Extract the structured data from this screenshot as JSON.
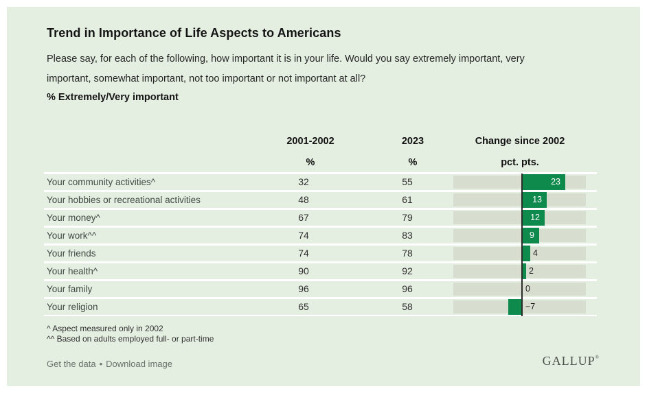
{
  "header": {
    "title": "Trend in Importance of Life Aspects to Americans",
    "question_lines": [
      "Please say, for each of the following, how important it is in your life. Would you say extremely important, very",
      "important, somewhat important, not too important or not important at all?"
    ],
    "measure": "% Extremely/Very important"
  },
  "table": {
    "columns": {
      "col1": {
        "label": "2001-2002",
        "unit": "%"
      },
      "col2": {
        "label": "2023",
        "unit": "%"
      },
      "col3": {
        "label": "Change since 2002",
        "unit": "pct. pts."
      }
    },
    "rows": [
      {
        "label": "Your community activities^",
        "v2002": "32",
        "v2023": "55",
        "change": 23,
        "change_label": "23"
      },
      {
        "label": "Your hobbies or recreational activities",
        "v2002": "48",
        "v2023": "61",
        "change": 13,
        "change_label": "13"
      },
      {
        "label": "Your money^",
        "v2002": "67",
        "v2023": "79",
        "change": 12,
        "change_label": "12"
      },
      {
        "label": "Your work^^",
        "v2002": "74",
        "v2023": "83",
        "change": 9,
        "change_label": "9"
      },
      {
        "label": "Your friends",
        "v2002": "74",
        "v2023": "78",
        "change": 4,
        "change_label": "4"
      },
      {
        "label": "Your health^",
        "v2002": "90",
        "v2023": "92",
        "change": 2,
        "change_label": "2"
      },
      {
        "label": "Your family",
        "v2002": "96",
        "v2023": "96",
        "change": 0,
        "change_label": "0"
      },
      {
        "label": "Your religion",
        "v2002": "65",
        "v2023": "58",
        "change": -7,
        "change_label": "−7"
      }
    ]
  },
  "footnotes": [
    "^ Aspect measured only in 2002",
    "^^ Based on adults employed full- or part-time"
  ],
  "footer": {
    "links": [
      "Get the data",
      "Download image"
    ],
    "separator": "•",
    "brand": "GALLUP",
    "brand_mark": "®"
  },
  "colors": {
    "card_bg": "#e5efe1",
    "bar_green": "#0e8a4d",
    "track": "#d8decf",
    "zero_line": "#2c2c2c"
  },
  "chart_data": {
    "type": "bar",
    "title": "Trend in Importance of Life Aspects to Americans",
    "subtitle": "Please say, for each of the following, how important it is in your life. Would you say extremely important, very important, somewhat important, not too important or not important at all?",
    "measure": "% Extremely/Very important",
    "categories": [
      "Your community activities^",
      "Your hobbies or recreational activities",
      "Your money^",
      "Your work^^",
      "Your friends",
      "Your health^",
      "Your family",
      "Your religion"
    ],
    "series": [
      {
        "name": "2001-2002 %",
        "values": [
          32,
          48,
          67,
          74,
          74,
          90,
          96,
          65
        ]
      },
      {
        "name": "2023 %",
        "values": [
          55,
          61,
          79,
          83,
          78,
          92,
          96,
          58
        ]
      },
      {
        "name": "Change since 2002 (pct. pts.)",
        "values": [
          23,
          13,
          12,
          9,
          4,
          2,
          0,
          -7
        ]
      }
    ],
    "change_axis_range": [
      -36,
      36
    ],
    "legend_position": "none",
    "grid": false
  }
}
